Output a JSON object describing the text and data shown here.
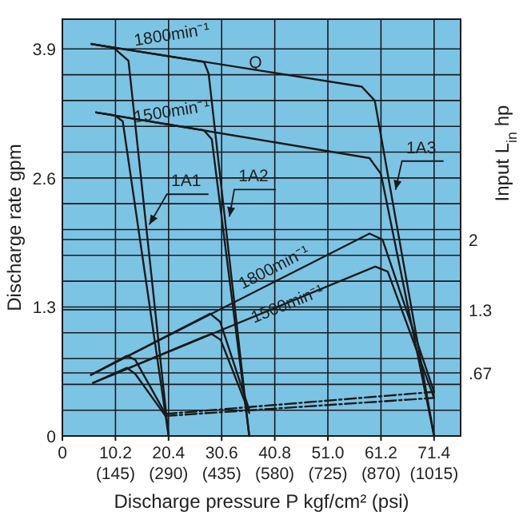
{
  "chart_data": {
    "type": "line",
    "xlabel": "Discharge pressure P kgf/cm² (psi)",
    "ylabel": "Discharge rate gpm",
    "y2label": "Input L$_{in}$ hp",
    "xlim": [
      0,
      76.5
    ],
    "ylim": [
      0,
      4.2
    ],
    "y2lim": [
      0.04,
      4.2
    ],
    "xticks": [
      0,
      10.2,
      20.4,
      30.6,
      40.8,
      {
        "value": 51,
        "label": "51.0"
      },
      61.2,
      71.4
    ],
    "x2lim": [
      0,
      1087.5
    ],
    "x2ticks": [
      {
        "value": 145,
        "label": "(145)"
      },
      {
        "value": 290,
        "label": "(290)"
      },
      {
        "value": 435,
        "label": "(435)"
      },
      {
        "value": 580,
        "label": "(580)"
      },
      {
        "value": 725,
        "label": "(725)"
      },
      {
        "value": 870,
        "label": "(870)"
      },
      {
        "value": 1015,
        "label": "(1015)"
      }
    ],
    "yticks": [
      0,
      {
        "value": 0.26,
        "label": null
      },
      {
        "value": 0.52,
        "label": null
      },
      {
        "value": 0.78,
        "label": null
      },
      {
        "value": 1.04,
        "label": null
      },
      1.3,
      {
        "value": 1.56,
        "label": null
      },
      {
        "value": 1.82,
        "label": null
      },
      {
        "value": 2.08,
        "label": null
      },
      {
        "value": 2.34,
        "label": null
      },
      2.6,
      {
        "value": 2.86,
        "label": null
      },
      {
        "value": 3.12,
        "label": null
      },
      {
        "value": 3.38,
        "label": null
      },
      {
        "value": 3.64,
        "label": null
      },
      3.9
    ],
    "y2ticks": [
      {
        "value": 0.67,
        "label": ".67"
      },
      1.3,
      2
    ],
    "grid": true,
    "line_style": "solid",
    "series": [
      {
        "color": "#1a1a1a",
        "x": [
          5.6,
          9.9,
          12.7,
          20.4
        ],
        "values": [
          3.95,
          3.91,
          3.78,
          0
        ]
      },
      {
        "color": "#1a1a1a",
        "x": [
          5.6,
          27.2,
          28.1,
          35.9
        ],
        "values": [
          3.95,
          3.77,
          3.65,
          0
        ]
      },
      {
        "color": "#1a1a1a",
        "x": [
          5.6,
          57.5,
          60,
          71.4
        ],
        "values": [
          3.95,
          3.52,
          3.38,
          0
        ]
      },
      {
        "color": "#1a1a1a",
        "x": [
          6.5,
          10.1,
          11.6,
          20.4
        ],
        "values": [
          3.26,
          3.23,
          3.17,
          0
        ]
      },
      {
        "color": "#1a1a1a",
        "x": [
          6.5,
          27.2,
          28.7,
          35.9
        ],
        "values": [
          3.26,
          3.08,
          2.99,
          0
        ]
      },
      {
        "color": "#1a1a1a",
        "x": [
          6.5,
          59,
          61.2,
          71.4
        ],
        "values": [
          3.26,
          2.8,
          2.64,
          0
        ]
      },
      {
        "color": "#1a1a1a",
        "axis": "y2",
        "x": [
          5.5,
          12.4,
          14,
          19.8
        ],
        "values": [
          0.65,
          0.84,
          0.8,
          0.26
        ]
      },
      {
        "color": "#1a1a1a",
        "axis": "y2",
        "x": [
          5.5,
          28.4,
          30.3,
          35.9
        ],
        "values": [
          0.65,
          1.26,
          1.18,
          0.3
        ]
      },
      {
        "color": "#1a1a1a",
        "axis": "y2",
        "x": [
          5.5,
          59,
          61.5,
          71.4
        ],
        "values": [
          0.65,
          2.06,
          2,
          0.48
        ]
      },
      {
        "color": "#1a1a1a",
        "axis": "y2",
        "x": [
          5.9,
          12.4,
          14,
          19.8
        ],
        "values": [
          0.57,
          0.72,
          0.66,
          0.24
        ]
      },
      {
        "color": "#1a1a1a",
        "axis": "y2",
        "x": [
          5.9,
          28.6,
          30.4,
          35.9
        ],
        "values": [
          0.57,
          1.06,
          1,
          0.27
        ]
      },
      {
        "color": "#1a1a1a",
        "axis": "y2",
        "x": [
          5.9,
          60.1,
          62.5,
          71.4
        ],
        "values": [
          0.57,
          1.73,
          1.68,
          0.42
        ]
      },
      {
        "color": "#1a1a1a",
        "axis": "y2",
        "line_style": "dashed",
        "x": [
          19.8,
          71.4
        ],
        "values": [
          0.26,
          0.48
        ]
      },
      {
        "color": "#1a1a1a",
        "axis": "y2",
        "line_style": "dashed",
        "x": [
          19.8,
          71.4
        ],
        "values": [
          0.24,
          0.42
        ]
      }
    ],
    "annotations": [
      "1800min⁻¹",
      {
        "text": "Q",
        "x": 37.1,
        "y": 3.71
      },
      "1500min⁻¹",
      {
        "text": "1A1",
        "x": 16.7,
        "y": 2.13
      },
      {
        "text": "1A2",
        "x": 32.1,
        "y": 2.21
      },
      {
        "text": "1A3",
        "x": 64.0,
        "y": 2.48
      },
      {
        "text": "1800min⁻¹",
        "x": 41.1,
        "y": 1.65
      },
      {
        "text": "1500min⁻¹",
        "x": 43.6,
        "y": 1.28
      }
    ]
  }
}
